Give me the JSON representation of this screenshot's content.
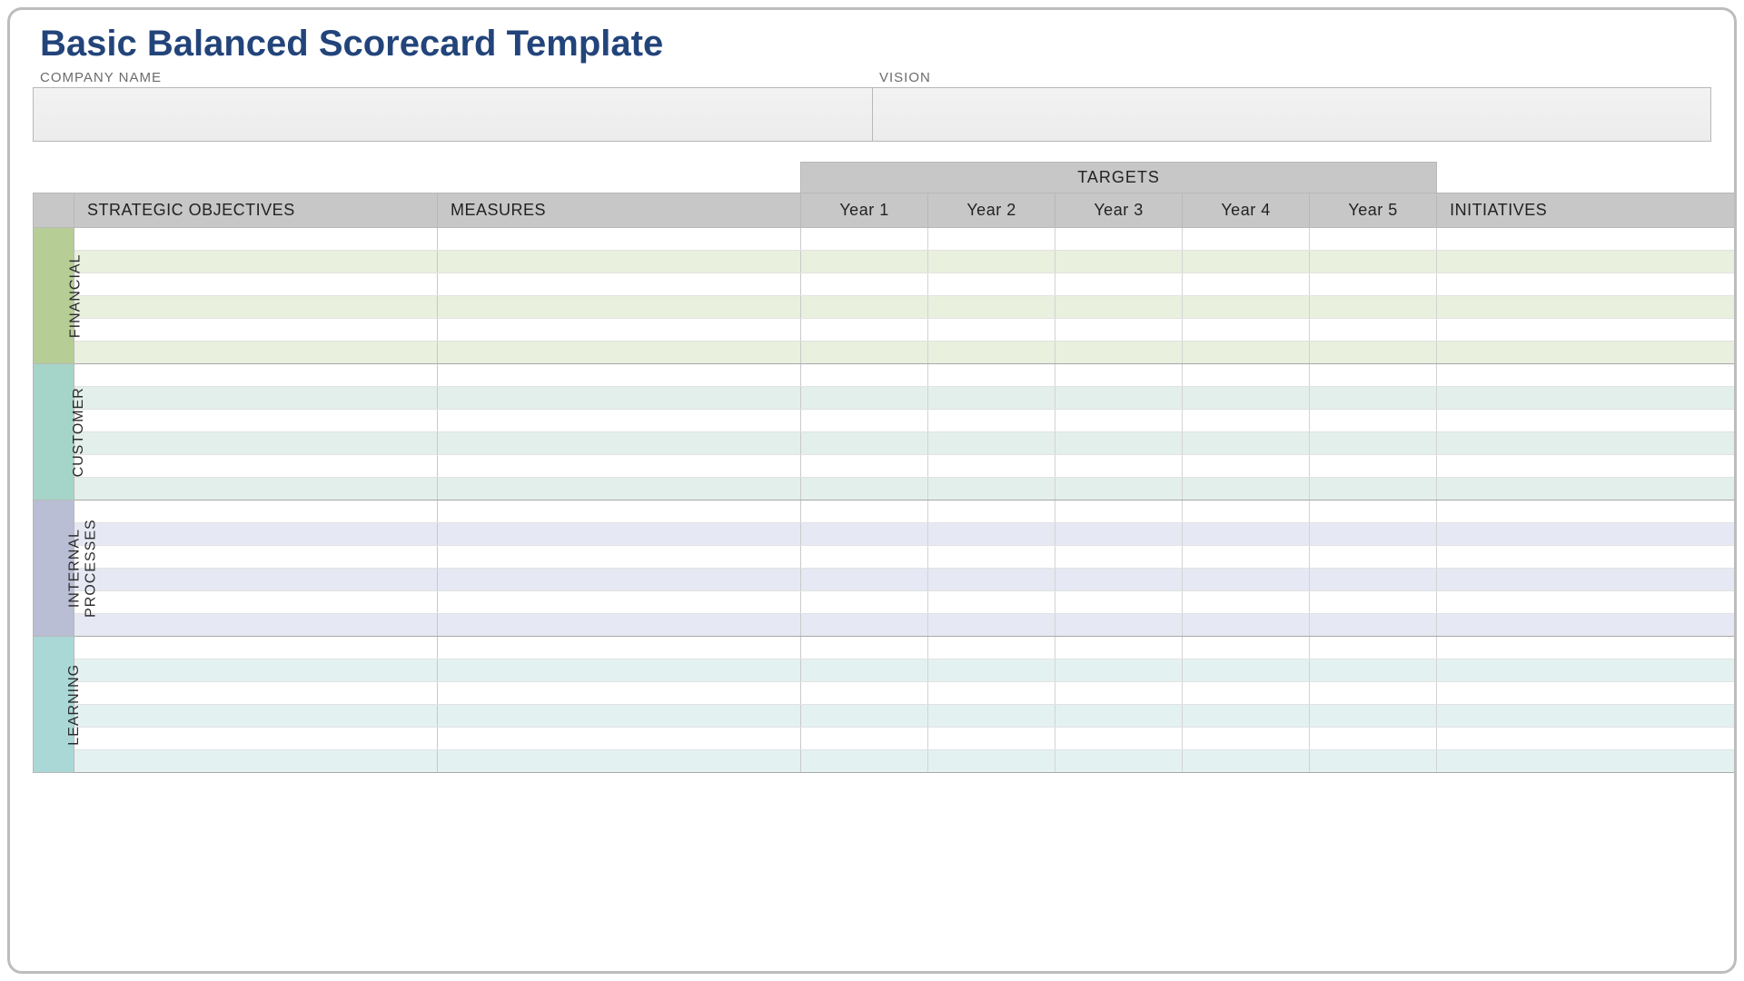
{
  "title": "Basic Balanced Scorecard Template",
  "company_label": "COMPANY NAME",
  "vision_label": "VISION",
  "targets_label": "TARGETS",
  "columns": {
    "strategic": "STRATEGIC OBJECTIVES",
    "measures": "MEASURES",
    "initiatives": "INITIATIVES",
    "years": [
      "Year 1",
      "Year 2",
      "Year 3",
      "Year 4",
      "Year 5"
    ]
  },
  "col_widths": {
    "side_label": 45,
    "strategic": 400,
    "measures": 400,
    "year": 140,
    "initiatives": 350
  },
  "colors": {
    "title": "#22447a",
    "header_bg": "#c7c7c7",
    "border": "#b8b8b8",
    "grid_light": "#e2e2e2",
    "grid_med": "#c9c9c9",
    "section_border": "#a8a8a8",
    "input_bg_top": "#f2f2f2",
    "input_bg_bottom": "#ececec"
  },
  "sections": [
    {
      "id": "financial",
      "label": "FINANCIAL",
      "side_bg": "#b6cd96",
      "row_tint": "#e9f0de",
      "rows": 6
    },
    {
      "id": "customer",
      "label": "CUSTOMER",
      "side_bg": "#a5d5c9",
      "row_tint": "#e3efeb",
      "rows": 6
    },
    {
      "id": "internal",
      "label": "INTERNAL\nPROCESSES",
      "side_bg": "#b9bed5",
      "row_tint": "#e6e9f4",
      "rows": 6
    },
    {
      "id": "learning",
      "label": "LEARNING",
      "side_bg": "#a9d8d7",
      "row_tint": "#e4f1f1",
      "rows": 6
    }
  ]
}
